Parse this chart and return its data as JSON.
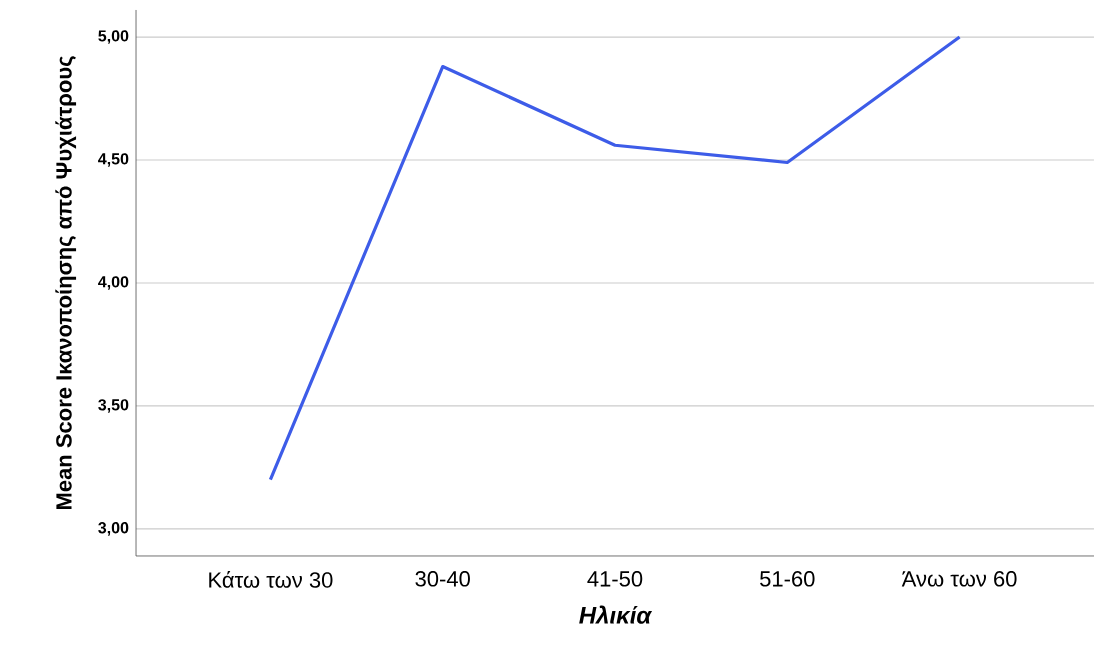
{
  "chart_data": {
    "type": "line",
    "xlabel": "Ηλικία",
    "ylabel": "Mean Score Ικανοποίησης από Ψυχιάτρους",
    "categories": [
      "Κάτω των 30",
      "30-40",
      "41-50",
      "51-60",
      "Άνω των 60"
    ],
    "series": [
      {
        "color": "#3d5ce8",
        "values": [
          3.2,
          4.88,
          4.56,
          4.49,
          5.0
        ]
      }
    ],
    "ylim": [
      2.89,
      5.11
    ],
    "yticks": [
      {
        "value": 3,
        "label": "3,00"
      },
      {
        "value": 3.5,
        "label": "3,50"
      },
      {
        "value": 4,
        "label": "4,00"
      },
      {
        "value": 4.5,
        "label": "4,50"
      },
      {
        "value": 5,
        "label": "5,00"
      }
    ],
    "grid": "y",
    "marker": "none",
    "line_style": "solid"
  }
}
